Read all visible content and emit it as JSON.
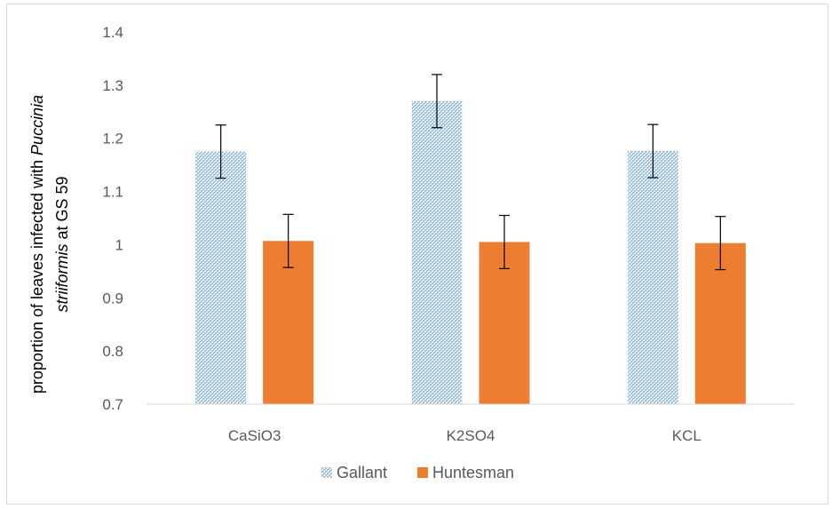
{
  "chart_data": {
    "type": "bar",
    "categories": [
      "CaSiO3",
      "K2SO4",
      "KCL"
    ],
    "series": [
      {
        "name": "Gallant",
        "values": [
          1.175,
          1.27,
          1.176
        ],
        "errors": [
          0.05,
          0.05,
          0.05
        ],
        "color": "#5b9bd5",
        "pattern": "dotted"
      },
      {
        "name": "Huntesman",
        "values": [
          1.007,
          1.005,
          1.003
        ],
        "errors": [
          0.05,
          0.05,
          0.05
        ],
        "color": "#ed7d31",
        "pattern": "solid"
      }
    ],
    "ylim": [
      0.7,
      1.4
    ],
    "yticks": [
      "1.4",
      "1.3",
      "1.2",
      "1.1",
      "1",
      "0.9",
      "0.8",
      "0.7"
    ],
    "ytick_values": [
      1.4,
      1.3,
      1.2,
      1.1,
      1.0,
      0.9,
      0.8,
      0.7
    ],
    "ylabel_line1_prefix": "proportion of leaves infected with ",
    "ylabel_line1_italic": "Puccinia",
    "ylabel_line2_italic": "striiformis",
    "ylabel_line2_suffix": "  at GS 59",
    "xlabel": "",
    "legend_position": "bottom",
    "grid": false
  }
}
